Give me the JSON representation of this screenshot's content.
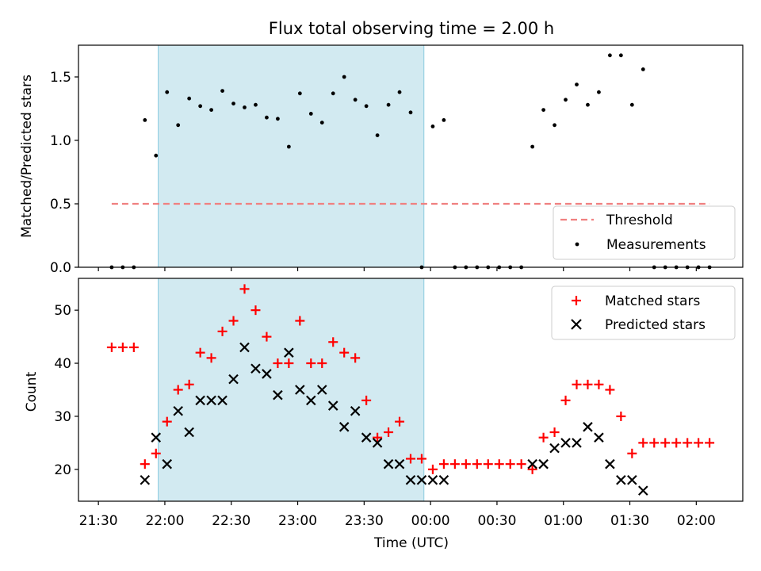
{
  "figure_title": "Flux total observing time = 2.00 h",
  "colors": {
    "shade": "#add8e6",
    "threshold": "#f08080",
    "matched": "#ff0000",
    "predicted": "#000000",
    "measurement": "#000000"
  },
  "chart_data": [
    {
      "type": "scatter",
      "title": "Flux total observing time = 2.00 h",
      "xlabel": "",
      "ylabel": "Matched/Predicted stars",
      "x_axis": "time_utc",
      "xlim": [
        "21:21",
        "02:21"
      ],
      "ylim": [
        0,
        1.75
      ],
      "yticks": [
        0.0,
        0.5,
        1.0,
        1.5
      ],
      "ytick_labels": [
        "0.0",
        "0.5",
        "1.0",
        "1.5"
      ],
      "shaded_interval": [
        "21:57",
        "23:57"
      ],
      "legend_position": "lower-right",
      "threshold": {
        "name": "Threshold",
        "y": 0.5,
        "x_range": [
          "21:36",
          "02:06"
        ]
      },
      "series": [
        {
          "name": "Measurements",
          "x": [
            "21:36",
            "21:41",
            "21:46",
            "21:51",
            "21:56",
            "22:01",
            "22:06",
            "22:11",
            "22:16",
            "22:21",
            "22:26",
            "22:31",
            "22:36",
            "22:41",
            "22:46",
            "22:51",
            "22:56",
            "23:01",
            "23:06",
            "23:11",
            "23:16",
            "23:21",
            "23:26",
            "23:31",
            "23:36",
            "23:41",
            "23:46",
            "23:51",
            "23:56",
            "00:01",
            "00:06",
            "00:11",
            "00:16",
            "00:21",
            "00:26",
            "00:31",
            "00:36",
            "00:41",
            "00:46",
            "00:51",
            "00:56",
            "01:01",
            "01:06",
            "01:11",
            "01:16",
            "01:21",
            "01:26",
            "01:31",
            "01:36",
            "01:41",
            "01:46",
            "01:51",
            "01:56",
            "02:01",
            "02:06"
          ],
          "y": [
            0,
            0,
            0,
            1.16,
            0.88,
            1.38,
            1.12,
            1.33,
            1.27,
            1.24,
            1.39,
            1.29,
            1.26,
            1.28,
            1.18,
            1.17,
            0.95,
            1.37,
            1.21,
            1.14,
            1.37,
            1.5,
            1.32,
            1.27,
            1.04,
            1.28,
            1.38,
            1.22,
            0,
            1.11,
            1.16,
            0,
            0,
            0,
            0,
            0,
            0,
            0,
            0.95,
            1.24,
            1.12,
            1.32,
            1.44,
            1.28,
            1.38,
            1.67,
            1.67,
            1.28,
            1.56,
            0,
            0,
            0,
            0,
            0,
            0
          ]
        }
      ]
    },
    {
      "type": "scatter",
      "xlabel": "Time (UTC)",
      "ylabel": "Count",
      "x_axis": "time_utc",
      "xlim": [
        "21:21",
        "02:21"
      ],
      "ylim": [
        14,
        56
      ],
      "yticks": [
        20,
        30,
        40,
        50
      ],
      "ytick_labels": [
        "20",
        "30",
        "40",
        "50"
      ],
      "xticks": [
        "21:30",
        "22:00",
        "22:30",
        "23:00",
        "23:30",
        "00:00",
        "00:30",
        "01:00",
        "01:30",
        "02:00"
      ],
      "shaded_interval": [
        "21:57",
        "23:57"
      ],
      "legend_position": "top-right",
      "series": [
        {
          "name": "Matched stars",
          "marker": "plus",
          "x": [
            "21:36",
            "21:41",
            "21:46",
            "21:51",
            "21:56",
            "22:01",
            "22:06",
            "22:11",
            "22:16",
            "22:21",
            "22:26",
            "22:31",
            "22:36",
            "22:41",
            "22:46",
            "22:51",
            "22:56",
            "23:01",
            "23:06",
            "23:11",
            "23:16",
            "23:21",
            "23:26",
            "23:31",
            "23:36",
            "23:41",
            "23:46",
            "23:51",
            "23:56",
            "00:01",
            "00:06",
            "00:11",
            "00:16",
            "00:21",
            "00:26",
            "00:31",
            "00:36",
            "00:41",
            "00:46",
            "00:51",
            "00:56",
            "01:01",
            "01:06",
            "01:11",
            "01:16",
            "01:21",
            "01:26",
            "01:31",
            "01:36",
            "01:41",
            "01:46",
            "01:51",
            "01:56",
            "02:01",
            "02:06"
          ],
          "y": [
            43,
            43,
            43,
            21,
            23,
            29,
            35,
            36,
            42,
            41,
            46,
            48,
            54,
            50,
            45,
            40,
            40,
            48,
            40,
            40,
            44,
            42,
            41,
            33,
            26,
            27,
            29,
            22,
            22,
            20,
            21,
            21,
            21,
            21,
            21,
            21,
            21,
            21,
            20,
            26,
            27,
            33,
            36,
            36,
            36,
            35,
            30,
            23,
            25,
            25,
            25,
            25,
            25,
            25,
            25
          ]
        },
        {
          "name": "Predicted stars",
          "marker": "x",
          "x": [
            "21:51",
            "21:56",
            "22:01",
            "22:06",
            "22:11",
            "22:16",
            "22:21",
            "22:26",
            "22:31",
            "22:36",
            "22:41",
            "22:46",
            "22:51",
            "22:56",
            "23:01",
            "23:06",
            "23:11",
            "23:16",
            "23:21",
            "23:26",
            "23:31",
            "23:36",
            "23:41",
            "23:46",
            "23:51",
            "23:56",
            "00:01",
            "00:06",
            "00:46",
            "00:51",
            "00:56",
            "01:01",
            "01:06",
            "01:11",
            "01:16",
            "01:21",
            "01:26",
            "01:31",
            "01:36"
          ],
          "y": [
            18,
            26,
            21,
            31,
            27,
            33,
            33,
            33,
            37,
            43,
            39,
            38,
            34,
            42,
            35,
            33,
            35,
            32,
            28,
            31,
            26,
            25,
            21,
            21,
            18,
            18,
            18,
            18,
            21,
            21,
            24,
            25,
            25,
            28,
            26,
            21,
            18,
            18,
            16
          ]
        }
      ]
    }
  ]
}
